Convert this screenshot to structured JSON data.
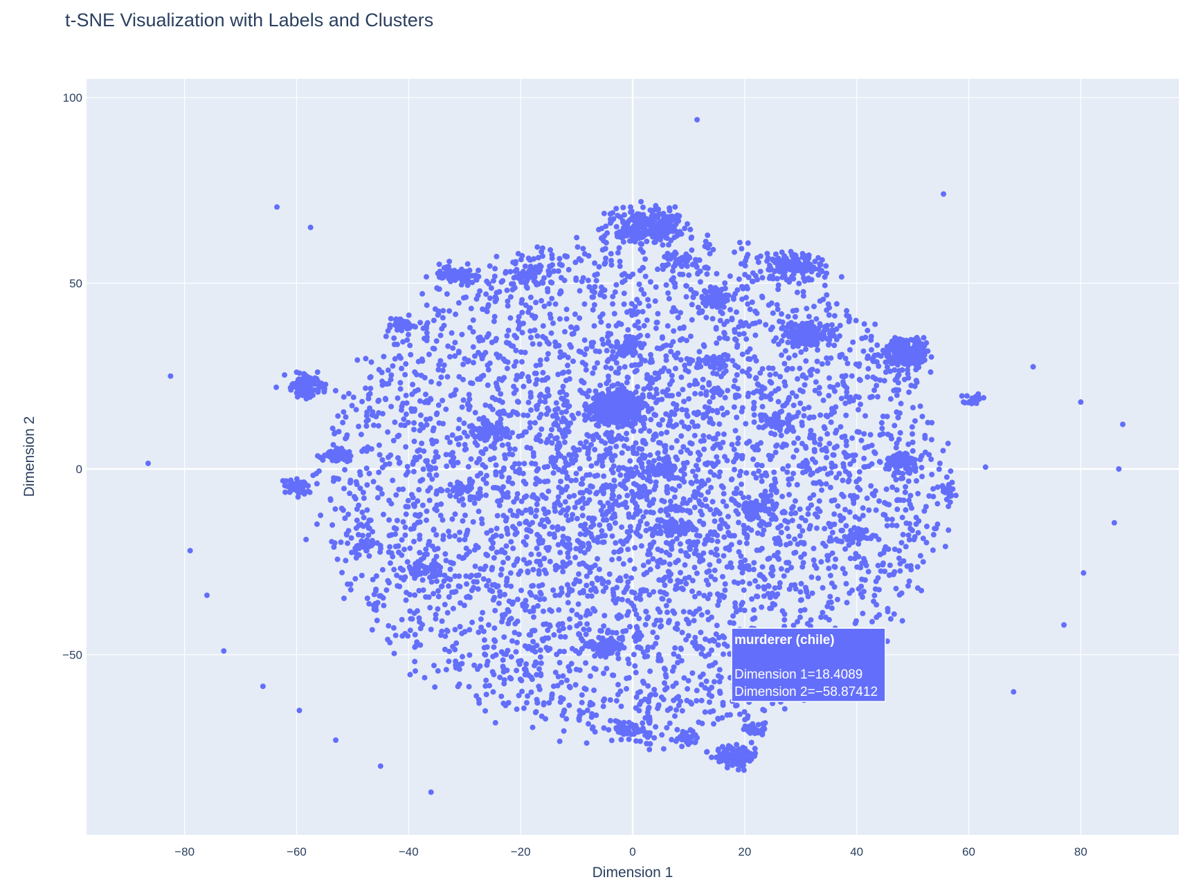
{
  "chart_data": {
    "type": "scatter",
    "title": "t-SNE Visualization with Labels and Clusters",
    "xlabel": "Dimension 1",
    "ylabel": "Dimension 2",
    "xlim": [
      -97.5,
      97.5
    ],
    "ylim": [
      -98.5,
      105
    ],
    "x_ticks": [
      -80,
      -60,
      -40,
      -20,
      0,
      20,
      40,
      60,
      80
    ],
    "x_tick_labels": [
      "−80",
      "−60",
      "−40",
      "−20",
      "0",
      "20",
      "40",
      "60",
      "80"
    ],
    "y_ticks": [
      -50,
      0,
      50,
      100
    ],
    "y_tick_labels": [
      "−50",
      "0",
      "50",
      "100"
    ],
    "grid": true,
    "legend": "none",
    "colors": {
      "marker": "#636efa",
      "plot_bg": "#e5ecf6",
      "grid": "#ffffff",
      "text": "#2a3f5f"
    },
    "outliers": [
      [
        -86.5,
        1.5
      ],
      [
        -82.5,
        25
      ],
      [
        -79,
        -22
      ],
      [
        -76,
        -34
      ],
      [
        -73,
        -49
      ],
      [
        -66,
        -58.5
      ],
      [
        -63.5,
        70.5
      ],
      [
        -59.5,
        -65
      ],
      [
        -57.5,
        65
      ],
      [
        -53,
        -73
      ],
      [
        -45,
        -80
      ],
      [
        -36,
        -87
      ],
      [
        11.5,
        94
      ],
      [
        55.5,
        74
      ],
      [
        63,
        0.5
      ],
      [
        68,
        -60
      ],
      [
        71.5,
        27.5
      ],
      [
        77,
        -42
      ],
      [
        80,
        18
      ],
      [
        80.5,
        -28
      ],
      [
        86,
        -14.5
      ],
      [
        86.8,
        0
      ],
      [
        87.5,
        12
      ]
    ],
    "clusters": [
      {
        "cx": -3,
        "cy": 16.5,
        "sx": 2.3,
        "sy": 2.0,
        "n": 520
      },
      {
        "cx": 2.5,
        "cy": 65.5,
        "sx": 3.2,
        "sy": 2.2,
        "n": 240
      },
      {
        "cx": 29,
        "cy": 54.5,
        "sx": 2.5,
        "sy": 1.6,
        "n": 150
      },
      {
        "cx": 31,
        "cy": 36.5,
        "sx": 2.2,
        "sy": 1.8,
        "n": 140
      },
      {
        "cx": 48.5,
        "cy": 31,
        "sx": 2.4,
        "sy": 2.2,
        "n": 200
      },
      {
        "cx": 18,
        "cy": -77.5,
        "sx": 1.6,
        "sy": 1.5,
        "n": 140
      },
      {
        "cx": -58,
        "cy": 22.5,
        "sx": 1.6,
        "sy": 1.5,
        "n": 90
      },
      {
        "cx": -31.5,
        "cy": 52.5,
        "sx": 2.0,
        "sy": 1.2,
        "n": 70
      },
      {
        "cx": -5,
        "cy": -48,
        "sx": 1.4,
        "sy": 1.4,
        "n": 70
      },
      {
        "cx": -26,
        "cy": 10,
        "sx": 1.6,
        "sy": 1.4,
        "n": 70
      },
      {
        "cx": 48,
        "cy": 2,
        "sx": 1.5,
        "sy": 1.3,
        "n": 70
      },
      {
        "cx": -1,
        "cy": 33,
        "sx": 1.6,
        "sy": 1.4,
        "n": 60
      },
      {
        "cx": 14.5,
        "cy": 46,
        "sx": 1.5,
        "sy": 1.2,
        "n": 60
      },
      {
        "cx": -60,
        "cy": -5,
        "sx": 1.4,
        "sy": 1.1,
        "n": 55
      },
      {
        "cx": -38,
        "cy": -27,
        "sx": 2.2,
        "sy": 1.2,
        "n": 60
      },
      {
        "cx": 7.5,
        "cy": -16,
        "sx": 1.5,
        "sy": 1.2,
        "n": 60
      },
      {
        "cx": 22,
        "cy": -10.5,
        "sx": 1.4,
        "sy": 1.2,
        "n": 45
      },
      {
        "cx": -1,
        "cy": -70,
        "sx": 1.8,
        "sy": 1.2,
        "n": 45
      },
      {
        "cx": 5.5,
        "cy": 0,
        "sx": 1.2,
        "sy": 1.0,
        "n": 40
      },
      {
        "cx": 25.5,
        "cy": 13,
        "sx": 1.3,
        "sy": 1.0,
        "n": 40
      },
      {
        "cx": 14,
        "cy": 29,
        "sx": 1.5,
        "sy": 1.0,
        "n": 40
      },
      {
        "cx": -53,
        "cy": 4,
        "sx": 1.3,
        "sy": 1.1,
        "n": 40
      },
      {
        "cx": -18,
        "cy": 52,
        "sx": 2.0,
        "sy": 1.5,
        "n": 50
      },
      {
        "cx": 8,
        "cy": 56,
        "sx": 1.5,
        "sy": 1.0,
        "n": 35
      },
      {
        "cx": 40,
        "cy": -18,
        "sx": 1.4,
        "sy": 1.2,
        "n": 40
      },
      {
        "cx": -48,
        "cy": -21,
        "sx": 1.2,
        "sy": 1.0,
        "n": 35
      },
      {
        "cx": -41,
        "cy": 39,
        "sx": 1.4,
        "sy": 1.0,
        "n": 35
      },
      {
        "cx": 56,
        "cy": -6,
        "sx": 0.8,
        "sy": 1.3,
        "n": 25
      },
      {
        "cx": 60.5,
        "cy": 18.5,
        "sx": 0.9,
        "sy": 0.8,
        "n": 18
      },
      {
        "cx": -30,
        "cy": -6,
        "sx": 1.6,
        "sy": 1.4,
        "n": 45
      },
      {
        "cx": 10,
        "cy": -72,
        "sx": 1.2,
        "sy": 1.0,
        "n": 30
      },
      {
        "cx": 22,
        "cy": -70,
        "sx": 1.0,
        "sy": 1.0,
        "n": 25
      }
    ],
    "field": {
      "cx": 0,
      "cy": -5,
      "rx": 55,
      "ry": 68,
      "n": 4300
    },
    "hover": {
      "name": "murderer (chile)",
      "x_label": "Dimension 1=18.4089",
      "y_label": "Dimension 2=−58.87412",
      "x": 18.4089,
      "y": -58.87412
    }
  }
}
